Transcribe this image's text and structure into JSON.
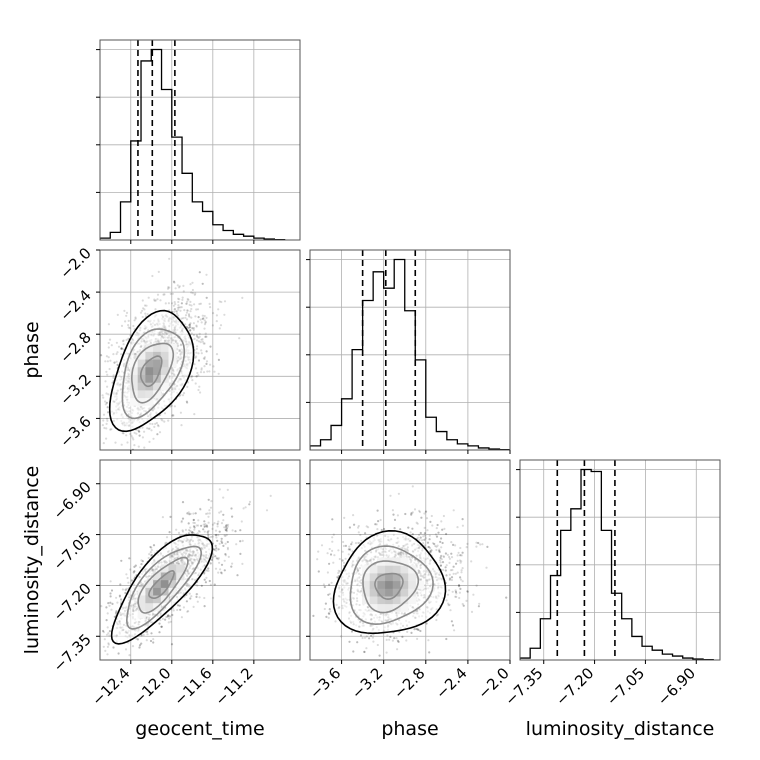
{
  "chart_data": {
    "type": "corner",
    "parameters": [
      "geocent_time",
      "phase",
      "luminosity_distance"
    ],
    "ranges": {
      "geocent_time": [
        -12.7,
        -10.75
      ],
      "phase": [
        -3.9,
        -2.0
      ],
      "luminosity_distance": [
        -7.42,
        -6.83
      ]
    },
    "ticks": {
      "geocent_time": [
        -12.4,
        -12.0,
        -11.6,
        -11.2
      ],
      "phase": [
        -3.6,
        -3.2,
        -2.8,
        -2.4,
        -2.0
      ],
      "luminosity_distance": [
        -7.35,
        -7.2,
        -7.05,
        -6.9
      ]
    },
    "tick_labels": {
      "geocent_time": [
        "−12.4",
        "−12.0",
        "−11.6",
        "−11.2"
      ],
      "phase": [
        "−3.6",
        "−3.2",
        "−2.8",
        "−2.4",
        "−2.0"
      ],
      "luminosity_distance": [
        "−7.35",
        "−7.20",
        "−7.05",
        "−6.90"
      ]
    },
    "histograms": {
      "geocent_time": {
        "bin_edges": [
          -12.7,
          -12.6,
          -12.5,
          -12.4,
          -12.3,
          -12.2,
          -12.1,
          -12.0,
          -11.9,
          -11.8,
          -11.7,
          -11.6,
          -11.5,
          -11.4,
          -11.3,
          -11.2,
          -11.1,
          -11.0,
          -10.9
        ],
        "counts": [
          1,
          4,
          20,
          52,
          94,
          100,
          79,
          54,
          35,
          20,
          15,
          8,
          5,
          3,
          2,
          1,
          0.5,
          0.2
        ]
      },
      "phase": {
        "bin_edges": [
          -3.9,
          -3.8,
          -3.7,
          -3.6,
          -3.5,
          -3.4,
          -3.3,
          -3.2,
          -3.1,
          -3.0,
          -2.9,
          -2.8,
          -2.7,
          -2.6,
          -2.5,
          -2.4,
          -2.3,
          -2.2,
          -2.1,
          -2.0
        ],
        "counts": [
          2,
          5,
          12,
          25,
          49,
          73,
          87,
          79,
          93,
          68,
          44,
          16,
          9,
          5,
          3,
          2,
          1,
          0.5,
          0.2
        ]
      },
      "luminosity_distance": {
        "bin_edges": [
          -7.42,
          -7.39,
          -7.36,
          -7.33,
          -7.3,
          -7.27,
          -7.24,
          -7.21,
          -7.18,
          -7.15,
          -7.12,
          -7.09,
          -7.06,
          -7.03,
          -7.0,
          -6.97,
          -6.94,
          -6.91,
          -6.88,
          -6.85
        ],
        "counts": [
          1,
          6,
          21,
          43,
          66,
          77,
          97,
          96,
          66,
          34,
          21,
          12,
          7,
          5,
          3,
          2,
          1,
          0.5,
          0.2
        ]
      }
    },
    "quantiles": {
      "geocent_time": [
        -12.33,
        -12.19,
        -11.97
      ],
      "phase": [
        -3.4,
        -3.18,
        -2.9
      ],
      "luminosity_distance": [
        -7.31,
        -7.23,
        -7.14
      ]
    },
    "pairs": [
      {
        "x": "geocent_time",
        "y": "phase",
        "mean": [
          -12.2,
          -3.15
        ],
        "std": [
          0.2,
          0.28
        ],
        "rho": 0.45,
        "peak": [
          -12.22,
          -3.22
        ]
      },
      {
        "x": "geocent_time",
        "y": "luminosity_distance",
        "mean": [
          -12.1,
          -7.2
        ],
        "std": [
          0.24,
          0.08
        ],
        "rho": 0.78,
        "peak": [
          -12.22,
          -7.24
        ]
      },
      {
        "x": "phase",
        "y": "luminosity_distance",
        "mean": [
          -3.15,
          -7.2
        ],
        "std": [
          0.26,
          0.075
        ],
        "rho": 0.1,
        "peak": [
          -3.15,
          -7.22
        ]
      }
    ],
    "contour_levels_sigma": [
      0.5,
      1.0,
      1.5,
      2.0
    ],
    "grid": true,
    "colors": {
      "line": "#000000",
      "grid": "#b0b0b0",
      "points": "#000000"
    }
  }
}
